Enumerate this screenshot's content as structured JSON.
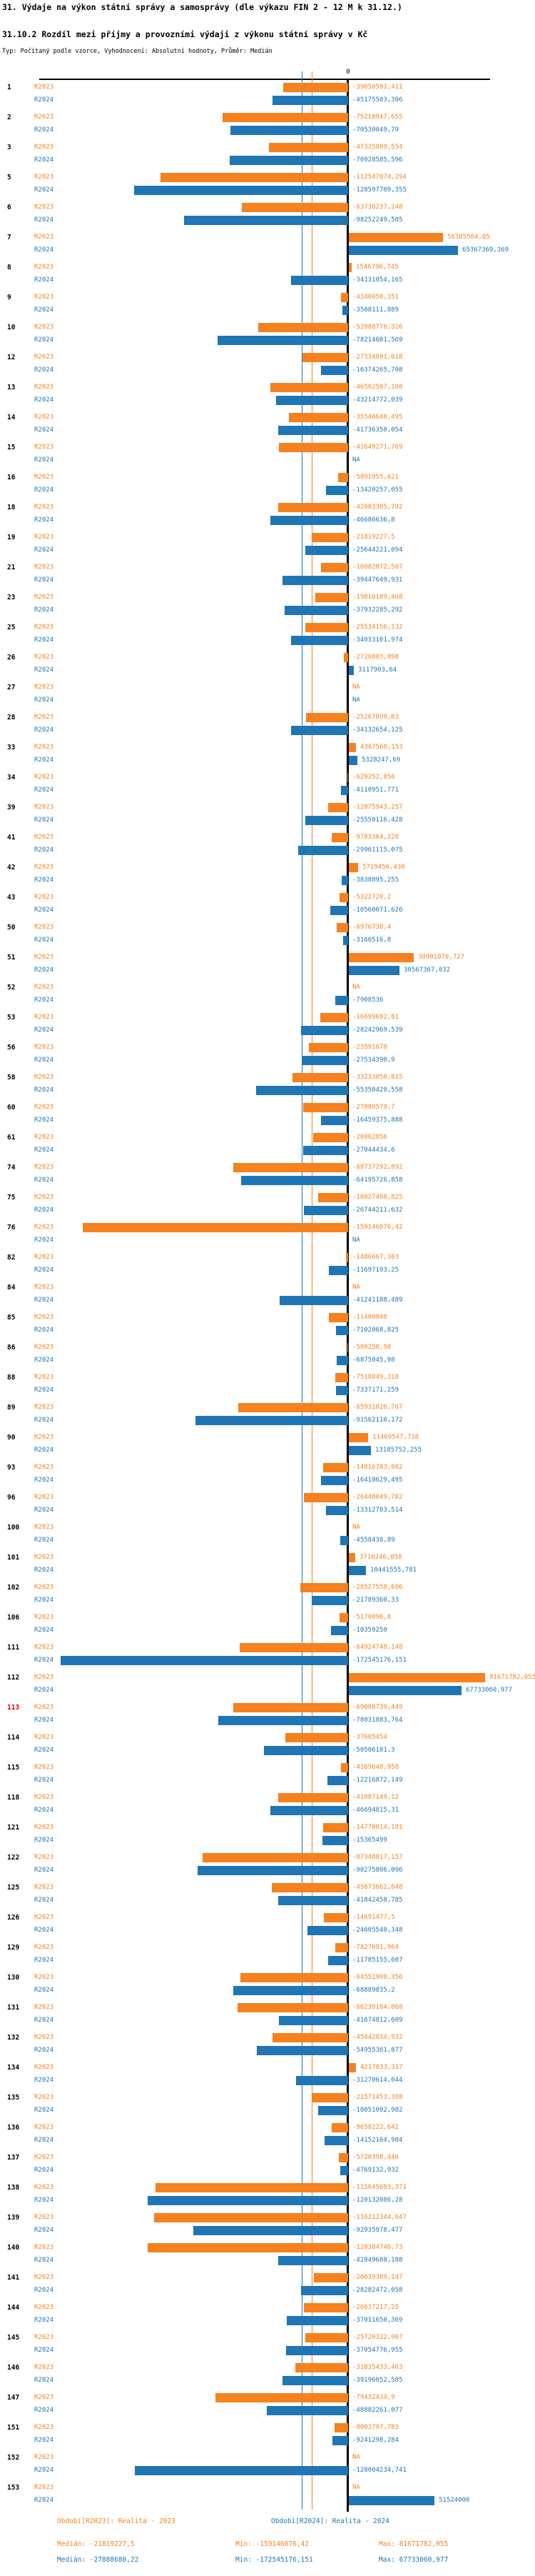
{
  "header": {
    "title": "31. Výdaje na výkon státní správy a samosprávy (dle výkazu FIN 2 - 12 M k 31.12.)",
    "subtitle": "31.10.2 Rozdíl mezi příjmy a provozními výdaji z výkonu státní správy v Kč",
    "meta": "Typ: Počítaný podle vzorce, Vyhodnocení: Absolutní hodnoty, Průměr: Medián"
  },
  "axis": {
    "zero_label": "0"
  },
  "colors": {
    "r2023": "#F5821E",
    "r2024": "#2076B4",
    "zero_line": "#000000",
    "highlight_row_number": "#E00000"
  },
  "na_label": "NA",
  "footer": {
    "period_r2023": "Období[R2023]: Realita - 2023",
    "period_r2024": "Období[R2024]: Realita - 2024",
    "stats_r2023": {
      "median": "Medián: -21819227,5",
      "min": "Min: -159146076,42",
      "max": "Max: 81671782,055"
    },
    "stats_r2024": {
      "median": "Medián: -27888680,22",
      "min": "Min: -172545176,151",
      "max": "Max: 67733060,977"
    }
  },
  "chart_data": {
    "type": "bar",
    "orientation": "horizontal",
    "unit": "Kč",
    "series": [
      "R2023",
      "R2024"
    ],
    "legend_position": "bottom",
    "grid": false,
    "xlim": [
      -180000000,
      110000000
    ],
    "median_lines": {
      "R2023": -21819227.5,
      "R2024": -27888680.22
    },
    "rows": [
      {
        "n": "1",
        "r2023": "-39050591,411",
        "r2024": "-45175503,306"
      },
      {
        "n": "2",
        "r2023": "-75218947,655",
        "r2024": "-70530049,79"
      },
      {
        "n": "3",
        "r2023": "-47325809,554",
        "r2024": "-70928585,596"
      },
      {
        "n": "5",
        "r2023": "-112547074,294",
        "r2024": "-128597709,355"
      },
      {
        "n": "6",
        "r2023": "-63736237,248",
        "r2024": "-98252249,505"
      },
      {
        "n": "7",
        "r2023": "56385504,05",
        "r2024": "65367369,369"
      },
      {
        "n": "8",
        "r2023": "1546796,745",
        "r2024": "-34131054,165"
      },
      {
        "n": "9",
        "r2023": "-4340058,351",
        "r2024": "-3508111,889"
      },
      {
        "n": "10",
        "r2023": "-53988776,326",
        "r2024": "-78214601,569"
      },
      {
        "n": "12",
        "r2023": "-27334891,618",
        "r2024": "-16374265,708"
      },
      {
        "n": "13",
        "r2023": "-46502507,108",
        "r2024": "-43214772,039"
      },
      {
        "n": "14",
        "r2023": "-35546640,495",
        "r2024": "-41736350,054"
      },
      {
        "n": "15",
        "r2023": "-41649271,769",
        "r2024": "NA"
      },
      {
        "n": "16",
        "r2023": "-5891955,621",
        "r2024": "-13420257,055"
      },
      {
        "n": "18",
        "r2023": "-42083305,792",
        "r2024": "-46686636,8"
      },
      {
        "n": "19",
        "r2023": "-21819227,5",
        "r2024": "-25644221,094"
      },
      {
        "n": "21",
        "r2023": "-16082072,507",
        "r2024": "-39447649,931"
      },
      {
        "n": "23",
        "r2023": "-19810189,468",
        "r2024": "-37932285,292"
      },
      {
        "n": "25",
        "r2023": "-25534156,132",
        "r2024": "-34033101,974"
      },
      {
        "n": "26",
        "r2023": "-2726803,898",
        "r2024": "3117903,64"
      },
      {
        "n": "27",
        "r2023": "NA",
        "r2024": "NA"
      },
      {
        "n": "28",
        "r2023": "-25267099,83",
        "r2024": "-34132654,125"
      },
      {
        "n": "33",
        "r2023": "4367560,153",
        "r2024": "5328247,69"
      },
      {
        "n": "34",
        "r2023": "-629252,856",
        "r2024": "-4110951,771"
      },
      {
        "n": "39",
        "r2023": "-12075943,257",
        "r2024": "-25550116,428"
      },
      {
        "n": "41",
        "r2023": "-9783364,228",
        "r2024": "-29961115,075"
      },
      {
        "n": "42",
        "r2023": "5719456,438",
        "r2024": "-3838895,255"
      },
      {
        "n": "43",
        "r2023": "-5322720,2",
        "r2024": "-10560071,626"
      },
      {
        "n": "50",
        "r2023": "-6976730,4",
        "r2024": "-3160516,8"
      },
      {
        "n": "51",
        "r2023": "38901070,727",
        "r2024": "30567367,032"
      },
      {
        "n": "52",
        "r2023": "NA",
        "r2024": "-7908536"
      },
      {
        "n": "53",
        "r2023": "-16699692,81",
        "r2024": "-28242969,539"
      },
      {
        "n": "56",
        "r2023": "-23591670",
        "r2024": "-27534390,9"
      },
      {
        "n": "58",
        "r2023": "-33233050,815",
        "r2024": "-55350428,558"
      },
      {
        "n": "60",
        "r2023": "-27080579,7",
        "r2024": "-16459375,888"
      },
      {
        "n": "61",
        "r2023": "-20862856",
        "r2024": "-27044434,6"
      },
      {
        "n": "74",
        "r2023": "-68737292,892",
        "r2024": "-64195726,858"
      },
      {
        "n": "75",
        "r2023": "-18027488,825",
        "r2024": "-26744211,632"
      },
      {
        "n": "76",
        "r2023": "-159146076,42",
        "r2024": "NA"
      },
      {
        "n": "82",
        "r2023": "-1486667,303",
        "r2024": "-11697193,25"
      },
      {
        "n": "84",
        "r2023": "NA",
        "r2024": "-41241188,489"
      },
      {
        "n": "85",
        "r2023": "-11480840",
        "r2024": "-7102068,825"
      },
      {
        "n": "86",
        "r2023": "-580250,98",
        "r2024": "-6875045,98"
      },
      {
        "n": "88",
        "r2023": "-7518849,318",
        "r2024": "-7337171,259"
      },
      {
        "n": "89",
        "r2023": "-65931026,767",
        "r2024": "-91562110,172"
      },
      {
        "n": "90",
        "r2023": "11469547,738",
        "r2024": "13185752,255"
      },
      {
        "n": "93",
        "r2023": "-14816783,082",
        "r2024": "-16418629,495"
      },
      {
        "n": "96",
        "r2023": "-26448049,782",
        "r2024": "-13312783,514"
      },
      {
        "n": "100",
        "r2023": "NA",
        "r2024": "-4558438,89"
      },
      {
        "n": "101",
        "r2023": "3710246,058",
        "r2024": "10441555,781"
      },
      {
        "n": "102",
        "r2023": "-28527558,696",
        "r2024": "-21789360,33"
      },
      {
        "n": "106",
        "r2023": "-5170096,8",
        "r2024": "-10359250"
      },
      {
        "n": "111",
        "r2023": "-64924748,148",
        "r2024": "-172545176,151"
      },
      {
        "n": "112",
        "r2023": "81671782,055",
        "r2024": "67733060,977"
      },
      {
        "n": "113",
        "r2023": "-69008739,449",
        "r2024": "-78031883,764",
        "red": true
      },
      {
        "n": "114",
        "r2023": "-37605454",
        "r2024": "-50506181,3"
      },
      {
        "n": "115",
        "r2023": "-4169648,958",
        "r2024": "-12216872,149"
      },
      {
        "n": "118",
        "r2023": "-41887149,12",
        "r2024": "-46694815,31"
      },
      {
        "n": "121",
        "r2023": "-14778014,181",
        "r2024": "-15365499"
      },
      {
        "n": "122",
        "r2023": "-87348817,157",
        "r2024": "-90275806,096"
      },
      {
        "n": "125",
        "r2023": "-45673662,848",
        "r2024": "-41842458,785"
      },
      {
        "n": "126",
        "r2023": "-14691477,5",
        "r2024": "-24605540,348"
      },
      {
        "n": "129",
        "r2023": "-7827691,964",
        "r2024": "-11785155,607"
      },
      {
        "n": "130",
        "r2023": "-64551908,356",
        "r2024": "-68889835,2"
      },
      {
        "n": "131",
        "r2023": "-66239184,868",
        "r2024": "-41674812,609"
      },
      {
        "n": "132",
        "r2023": "-45442834,932",
        "r2024": "-54955361,877"
      },
      {
        "n": "134",
        "r2023": "4217033,317",
        "r2024": "-31270614,044"
      },
      {
        "n": "135",
        "r2023": "-21571453,388",
        "r2024": "-18051092,982"
      },
      {
        "n": "136",
        "r2023": "-9658222,642",
        "r2024": "-14152164,904"
      },
      {
        "n": "137",
        "r2023": "-5720398,446",
        "r2024": "-4769132,932"
      },
      {
        "n": "138",
        "r2023": "-115645693,371",
        "r2024": "-120132086,28"
      },
      {
        "n": "139",
        "r2023": "-116212344,647",
        "r2024": "-92935978,477"
      },
      {
        "n": "140",
        "r2023": "-120384746,73",
        "r2024": "-42049688,108"
      },
      {
        "n": "141",
        "r2023": "-20639389,147",
        "r2024": "-28282472,058"
      },
      {
        "n": "144",
        "r2023": "-26637217,25",
        "r2024": "-37011650,369"
      },
      {
        "n": "145",
        "r2023": "-25720322,907",
        "r2024": "-37054776,955"
      },
      {
        "n": "146",
        "r2023": "-31835433,463",
        "r2024": "-39196052,585"
      },
      {
        "n": "147",
        "r2023": "-79432434,9",
        "r2024": "-48882261,077"
      },
      {
        "n": "151",
        "r2023": "-8003797,783",
        "r2024": "-9241298,284"
      },
      {
        "n": "152",
        "r2023": "NA",
        "r2024": "-128004234,741"
      },
      {
        "n": "153",
        "r2023": "NA",
        "r2024": "51524000"
      }
    ]
  }
}
